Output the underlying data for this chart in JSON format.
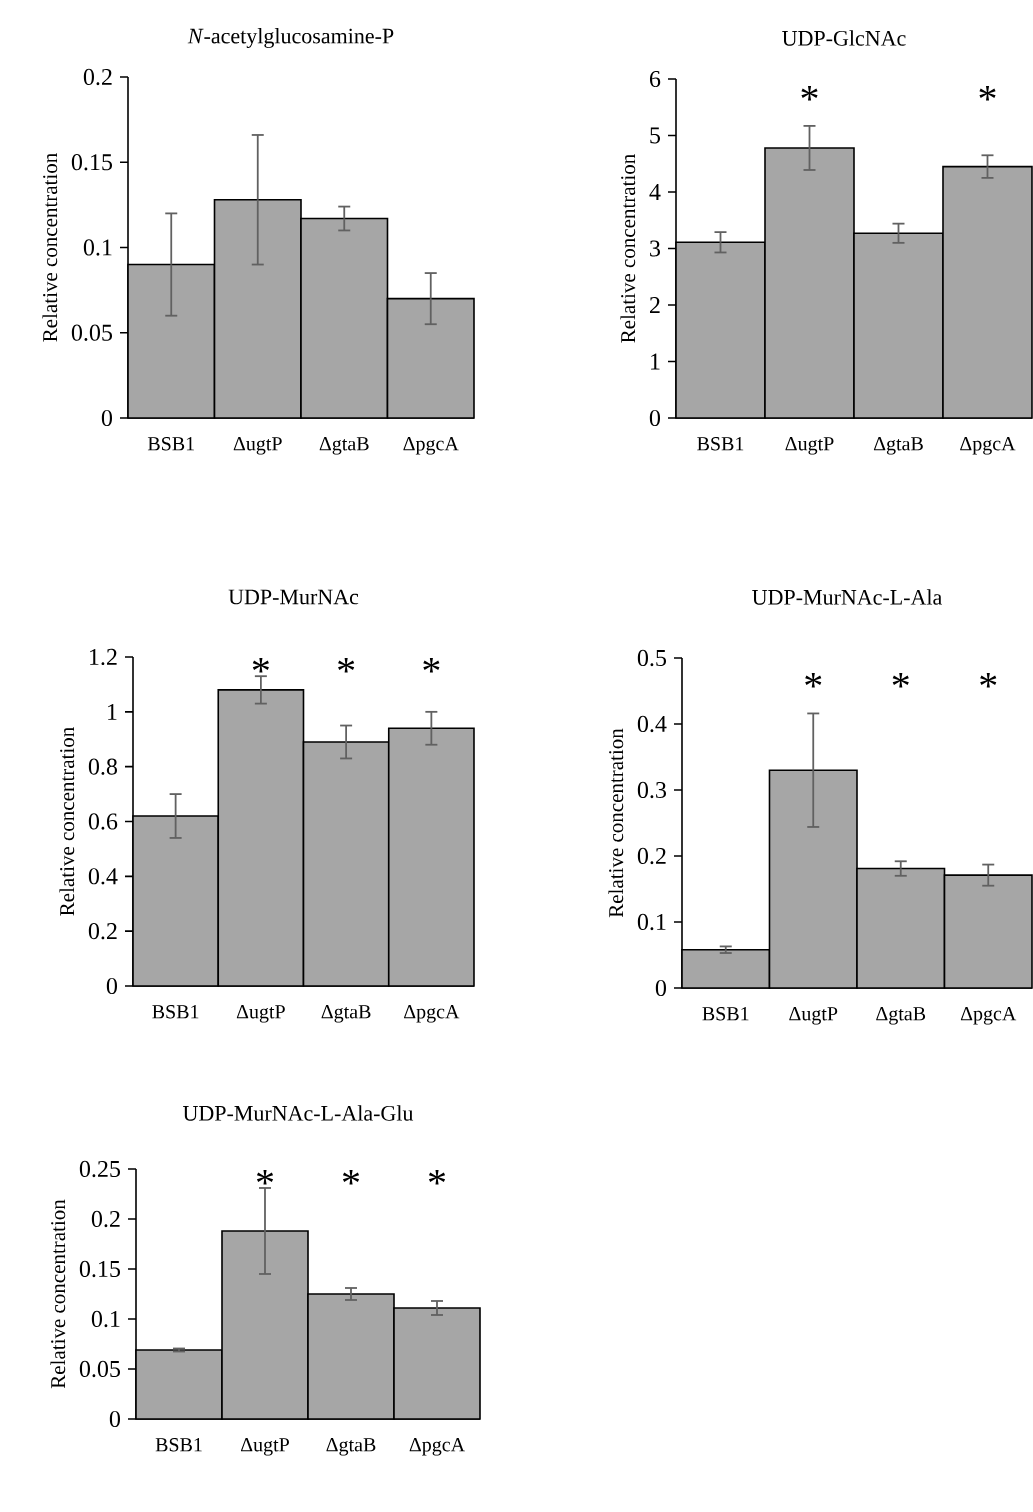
{
  "chart_data": [
    {
      "type": "bar",
      "title": "*N*-acetylglucosamine-P",
      "ylabel": "Relative concentration",
      "categories": [
        "BSB1",
        "ΔugtP",
        "ΔgtaB",
        "ΔpgcA"
      ],
      "values": [
        0.09,
        0.128,
        0.117,
        0.07
      ],
      "errors": [
        0.03,
        0.038,
        0.007,
        0.015
      ],
      "color": "#a6a6a6",
      "ylim": [
        0,
        0.2
      ],
      "yticks": [
        0,
        0.05,
        0.1,
        0.15,
        0.2
      ]
    },
    {
      "type": "bar",
      "title": "UDP-GlcNAc",
      "ylabel": "Relative concentration",
      "categories": [
        "BSB1",
        "ΔugtP",
        "ΔgtaB",
        "ΔpgcA"
      ],
      "values": [
        3.11,
        4.78,
        3.27,
        4.45
      ],
      "errors": [
        0.18,
        0.39,
        0.17,
        0.2
      ],
      "color": "#a6a6a6",
      "ylim": [
        0,
        6
      ],
      "yticks": [
        0,
        1,
        2,
        3,
        4,
        5,
        6
      ],
      "annotations": [
        "*",
        "*"
      ]
    },
    {
      "type": "bar",
      "title": "UDP-MurNAc",
      "ylabel": "Relative concentration",
      "categories": [
        "BSB1",
        "ΔugtP",
        "ΔgtaB",
        "ΔpgcA"
      ],
      "values": [
        0.62,
        1.08,
        0.89,
        0.94
      ],
      "errors": [
        0.08,
        0.05,
        0.06,
        0.06
      ],
      "color": "#a6a6a6",
      "ylim": [
        0,
        1.2
      ],
      "yticks": [
        0,
        0.2,
        0.4,
        0.6,
        0.8,
        1,
        1.2
      ],
      "annotations": [
        "*",
        "*",
        "*"
      ]
    },
    {
      "type": "bar",
      "title": "UDP-MurNAc-L-Ala",
      "ylabel": "Relative concentration",
      "categories": [
        "BSB1",
        "ΔugtP",
        "ΔgtaB",
        "ΔpgcA"
      ],
      "values": [
        0.058,
        0.33,
        0.181,
        0.171
      ],
      "errors": [
        0.005,
        0.086,
        0.011,
        0.016
      ],
      "color": "#a6a6a6",
      "ylim": [
        0,
        0.5
      ],
      "yticks": [
        0,
        0.1,
        0.2,
        0.3,
        0.4,
        0.5
      ],
      "annotations": [
        "*",
        "*",
        "*"
      ]
    },
    {
      "type": "bar",
      "title": "UDP-MurNAc-L-Ala-Glu",
      "ylabel": "Relative concentration",
      "categories": [
        "BSB1",
        "ΔugtP",
        "ΔgtaB",
        "ΔpgcA"
      ],
      "values": [
        0.069,
        0.188,
        0.125,
        0.111
      ],
      "errors": [
        0.0015,
        0.043,
        0.006,
        0.007
      ],
      "color": "#a6a6a6",
      "ylim": [
        0,
        0.25
      ],
      "yticks": [
        0,
        0.05,
        0.1,
        0.15,
        0.2,
        0.25
      ],
      "annotations": [
        "*",
        "*",
        "*"
      ]
    }
  ]
}
